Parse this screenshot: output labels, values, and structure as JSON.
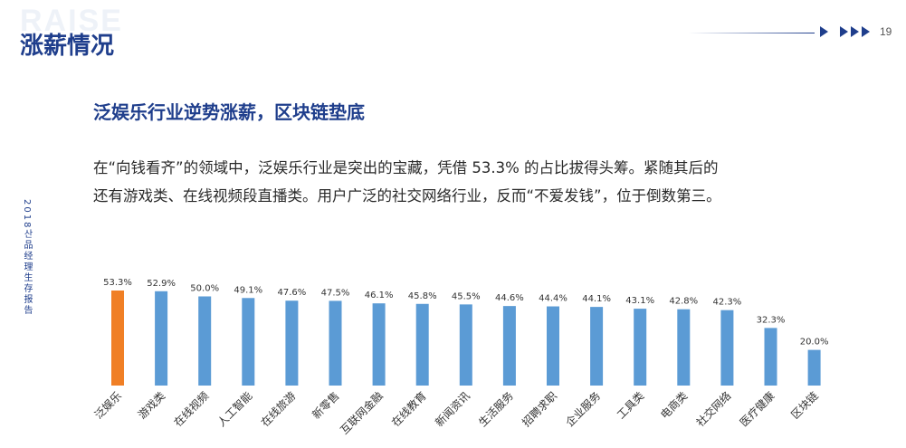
{
  "header": {
    "watermark": "RAISE",
    "title": "涨薪情况",
    "page_number": "19",
    "accent_color": "#1f3e8c"
  },
  "sidebar": {
    "text": "2018산品经理生存报告"
  },
  "content": {
    "subtitle": "泛娱乐行业逆势涨薪，区块链垫底",
    "paragraph_line1": "在“向钱看齐”的领域中，泛娱乐行业是突出的宝藏，凭借 53.3% 的占比拔得头筹。紧随其后的",
    "paragraph_line2": "还有游戏类、在线视频段直播类。用户广泛的社交网络行业，反而“不爱发钱”，位于倒数第三。"
  },
  "chart_data": {
    "type": "bar",
    "categories": [
      "泛娱乐",
      "游戏类",
      "在线视频",
      "人工智能",
      "在线旅游",
      "新零售",
      "互联网金融",
      "在线教育",
      "新闻资讯",
      "生活服务",
      "招聘求职",
      "企业服务",
      "工具类",
      "电商类",
      "社交网络",
      "医疗健康",
      "区块链"
    ],
    "values": [
      53.3,
      52.9,
      50.0,
      49.1,
      47.6,
      47.5,
      46.1,
      45.8,
      45.5,
      44.6,
      44.4,
      44.1,
      43.1,
      42.8,
      42.3,
      32.3,
      20.0
    ],
    "data_labels": [
      "53.3%",
      "52.9%",
      "50.0%",
      "49.1%",
      "47.6%",
      "47.5%",
      "46.1%",
      "45.8%",
      "45.5%",
      "44.6%",
      "44.4%",
      "44.1%",
      "43.1%",
      "42.8%",
      "42.3%",
      "32.3%",
      "20.0%"
    ],
    "highlight_index": 0,
    "highlight_color": "#f07f25",
    "bar_color": "#5b9bd5",
    "ylim": [
      0,
      60
    ],
    "grid": false,
    "legend": "none"
  }
}
